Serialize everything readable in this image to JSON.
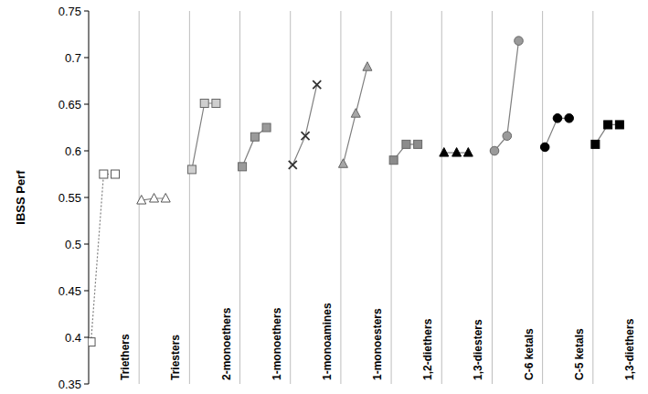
{
  "chart_data": {
    "type": "line",
    "y_label": "IBSS Perf",
    "ylim": [
      0.35,
      0.75
    ],
    "yticks": [
      0.35,
      0.4,
      0.45,
      0.5,
      0.55,
      0.6,
      0.65,
      0.7,
      0.75
    ],
    "grid": false,
    "tick_labels": "y",
    "series": [
      {
        "name": "Triethers",
        "color": "#ffffff",
        "marker": "square",
        "line_style": "dotted",
        "values": [
          0.395,
          0.575,
          0.575
        ]
      },
      {
        "name": "Triesters",
        "color": "#ffffff",
        "marker": "triangle",
        "line_style": "solid",
        "values": [
          0.547,
          0.549,
          0.549
        ]
      },
      {
        "name": "2-monoethers",
        "color": "#cfcfcf",
        "marker": "square",
        "line_style": "solid",
        "values": [
          0.58,
          0.651,
          0.651
        ]
      },
      {
        "name": "1-monoethers",
        "color": "#9a9a9a",
        "marker": "square",
        "line_style": "solid",
        "values": [
          0.583,
          0.615,
          0.625
        ]
      },
      {
        "name": "1-monoamines",
        "color": "#333333",
        "marker": "x",
        "line_style": "solid",
        "values": [
          0.585,
          0.616,
          0.671
        ]
      },
      {
        "name": "1-monoesters",
        "color": "#a6a6a6",
        "marker": "triangle",
        "line_style": "solid",
        "values": [
          0.586,
          0.64,
          0.69
        ]
      },
      {
        "name": "1,2-diethers",
        "color": "#8c8c8c",
        "marker": "square",
        "line_style": "solid",
        "values": [
          0.59,
          0.607,
          0.607
        ]
      },
      {
        "name": "1,3-diesters",
        "color": "#000000",
        "marker": "triangle",
        "line_style": "solid",
        "values": [
          0.598,
          0.598,
          0.598
        ]
      },
      {
        "name": "C-6 ketals",
        "color": "#9a9a9a",
        "marker": "circle",
        "line_style": "solid",
        "values": [
          0.6,
          0.616,
          0.718
        ]
      },
      {
        "name": "C-5 ketals",
        "color": "#000000",
        "marker": "circle",
        "line_style": "solid",
        "values": [
          0.604,
          0.635,
          0.635
        ]
      },
      {
        "name": "1,3-diethers",
        "color": "#000000",
        "marker": "square",
        "line_style": "solid",
        "values": [
          0.607,
          0.628,
          0.628
        ]
      }
    ]
  }
}
